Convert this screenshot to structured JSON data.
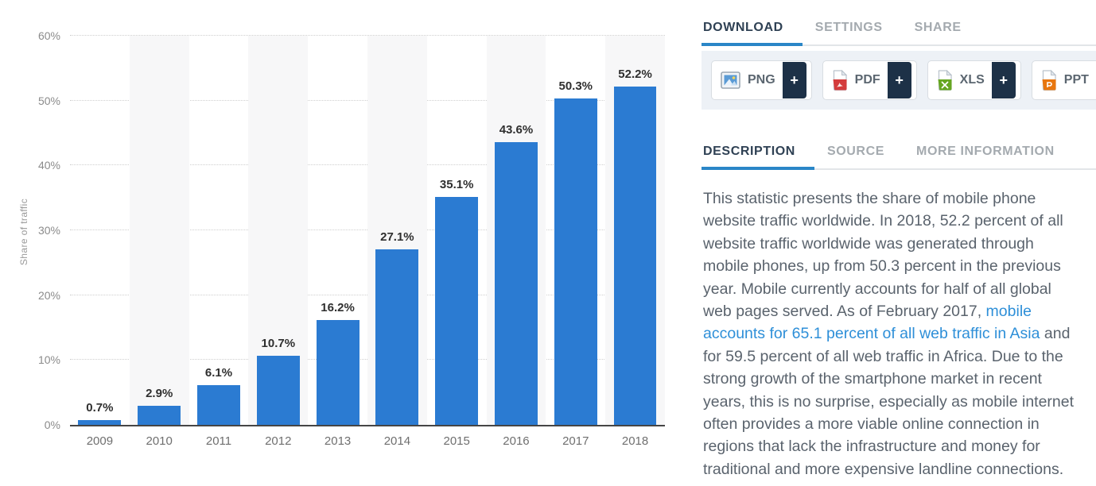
{
  "colors": {
    "bar": "#2b7bd2",
    "accent_underline": "#2a86c7",
    "link": "#2e8fd8",
    "plus_bg": "#1d3147",
    "band": "#f7f7f8"
  },
  "chart_data": {
    "type": "bar",
    "title": "",
    "xlabel": "",
    "ylabel": "Share of traffic",
    "categories": [
      "2009",
      "2010",
      "2011",
      "2012",
      "2013",
      "2014",
      "2015",
      "2016",
      "2017",
      "2018"
    ],
    "values": [
      0.7,
      2.9,
      6.1,
      10.7,
      16.2,
      27.1,
      35.1,
      43.6,
      50.3,
      52.2
    ],
    "value_labels": [
      "0.7%",
      "2.9%",
      "6.1%",
      "10.7%",
      "16.2%",
      "27.1%",
      "35.1%",
      "43.6%",
      "50.3%",
      "52.2%"
    ],
    "ylim": [
      0,
      60
    ],
    "yticks": [
      {
        "value": 0,
        "label": "0%"
      },
      {
        "value": 10,
        "label": "10%"
      },
      {
        "value": 20,
        "label": "20%"
      },
      {
        "value": 30,
        "label": "30%"
      },
      {
        "value": 40,
        "label": "40%"
      },
      {
        "value": 50,
        "label": "50%"
      },
      {
        "value": 60,
        "label": "60%"
      }
    ],
    "grid": "horizontal-dotted",
    "legend_position": "none",
    "bar_color": "#2b7bd2"
  },
  "download_section": {
    "tabs": [
      {
        "label": "DOWNLOAD",
        "active": true
      },
      {
        "label": "SETTINGS",
        "active": false
      },
      {
        "label": "SHARE",
        "active": false
      }
    ],
    "buttons": [
      {
        "label": "PNG",
        "icon": "png-image-icon",
        "plus": "+"
      },
      {
        "label": "PDF",
        "icon": "pdf-file-icon",
        "plus": "+"
      },
      {
        "label": "XLS",
        "icon": "xls-file-icon",
        "plus": "+"
      },
      {
        "label": "PPT",
        "icon": "ppt-file-icon",
        "plus": "+"
      }
    ]
  },
  "info_section": {
    "tabs": [
      {
        "label": "DESCRIPTION",
        "active": true
      },
      {
        "label": "SOURCE",
        "active": false
      },
      {
        "label": "MORE INFORMATION",
        "active": false
      }
    ],
    "description": {
      "before_link": "This statistic presents the share of mobile phone website traffic worldwide. In 2018, 52.2 percent of all website traffic worldwide was generated through mobile phones, up from 50.3 percent in the previous year. Mobile currently accounts for half of all global web pages served. As of February 2017, ",
      "link_text": "mobile accounts for 65.1 percent of all web traffic in Asia",
      "after_link": " and for 59.5 percent of all web traffic in Africa. Due to the strong growth of the smartphone market in recent years, this is no surprise, especially as mobile internet often provides a more viable online connection in regions that lack the infrastructure and money for traditional and more expensive landline connections."
    }
  }
}
